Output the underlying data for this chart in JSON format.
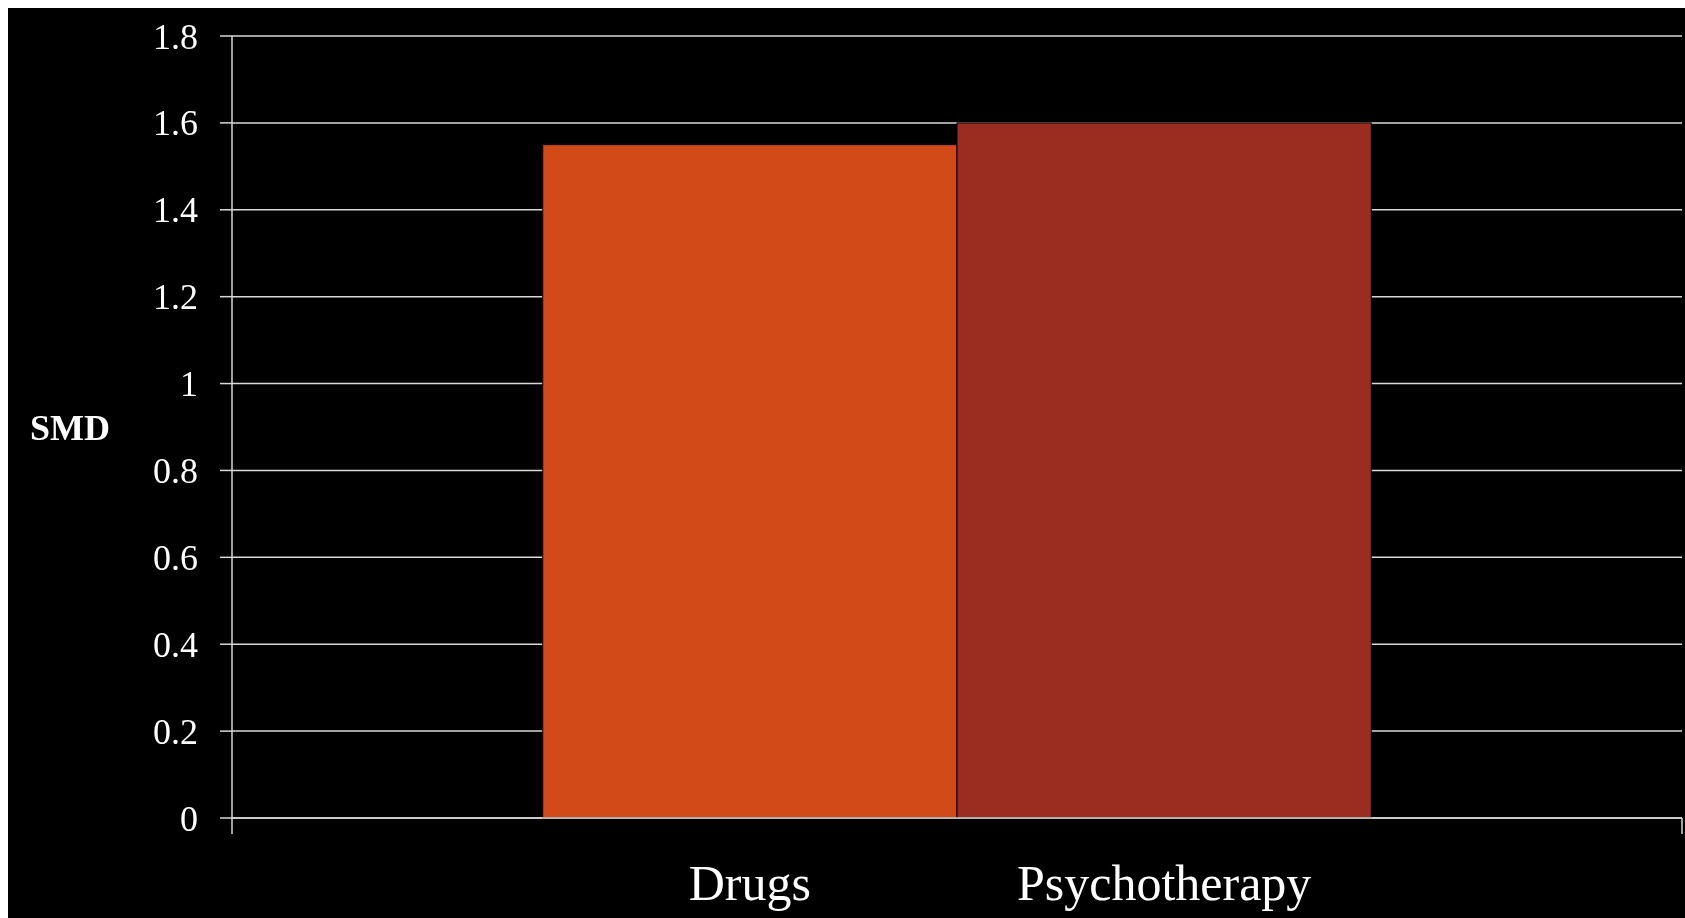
{
  "chart_data": {
    "type": "bar",
    "categories": [
      "Drugs",
      "Psychotherapy"
    ],
    "values": [
      1.55,
      1.6
    ],
    "colors": [
      "#d24a18",
      "#9a2d20"
    ],
    "ylabel": "SMD",
    "ylim": [
      0,
      1.8
    ],
    "yticks": [
      0,
      {
        "value": 0.2,
        "label": "0.2"
      },
      {
        "value": 0.4,
        "label": "0.4"
      },
      {
        "value": 0.6,
        "label": "0.6"
      },
      {
        "value": 0.8,
        "label": "0.8"
      },
      1,
      {
        "value": 1.2,
        "label": "1.2"
      },
      {
        "value": 1.4,
        "label": "1.4"
      },
      {
        "value": 1.6,
        "label": "1.6"
      },
      {
        "value": 1.8,
        "label": "1.8"
      }
    ],
    "grid": "y"
  }
}
